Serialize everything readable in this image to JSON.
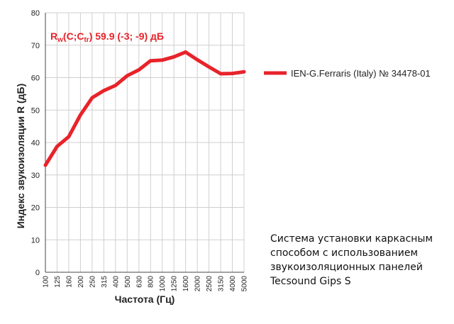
{
  "chart_data": {
    "type": "line",
    "title": "",
    "xlabel": "Частота (Гц)",
    "ylabel": "Индекс звукоизоляции R (дБ)",
    "ylim": [
      0,
      80
    ],
    "yticks": [
      0,
      10,
      20,
      30,
      40,
      50,
      60,
      70,
      80
    ],
    "grid": true,
    "legend_position": "right",
    "categories": [
      "100",
      "125",
      "160",
      "200",
      "250",
      "315",
      "400",
      "500",
      "630",
      "800",
      "1000",
      "1250",
      "1600",
      "2000",
      "2500",
      "3150",
      "4000",
      "5000"
    ],
    "series": [
      {
        "name": "IEN-G.Ferraris (Italy) № 34478-01",
        "color": "#e8232a",
        "values": [
          33.0,
          38.8,
          41.8,
          48.5,
          53.8,
          56.0,
          57.6,
          60.6,
          62.4,
          65.2,
          65.4,
          66.4,
          67.9,
          65.5,
          63.3,
          61.2,
          61.3,
          61.8
        ]
      }
    ],
    "annotation": {
      "main": "R",
      "main_sub": "w",
      "mid": "(C;C",
      "mid_sub": "tr",
      "tail": ") 59.9 (-3; -9) дБ"
    }
  },
  "caption": [
    "Система установки каркасным",
    "способом с использованием",
    "звукоизоляционных панелей",
    "Tecsound Gips S"
  ]
}
